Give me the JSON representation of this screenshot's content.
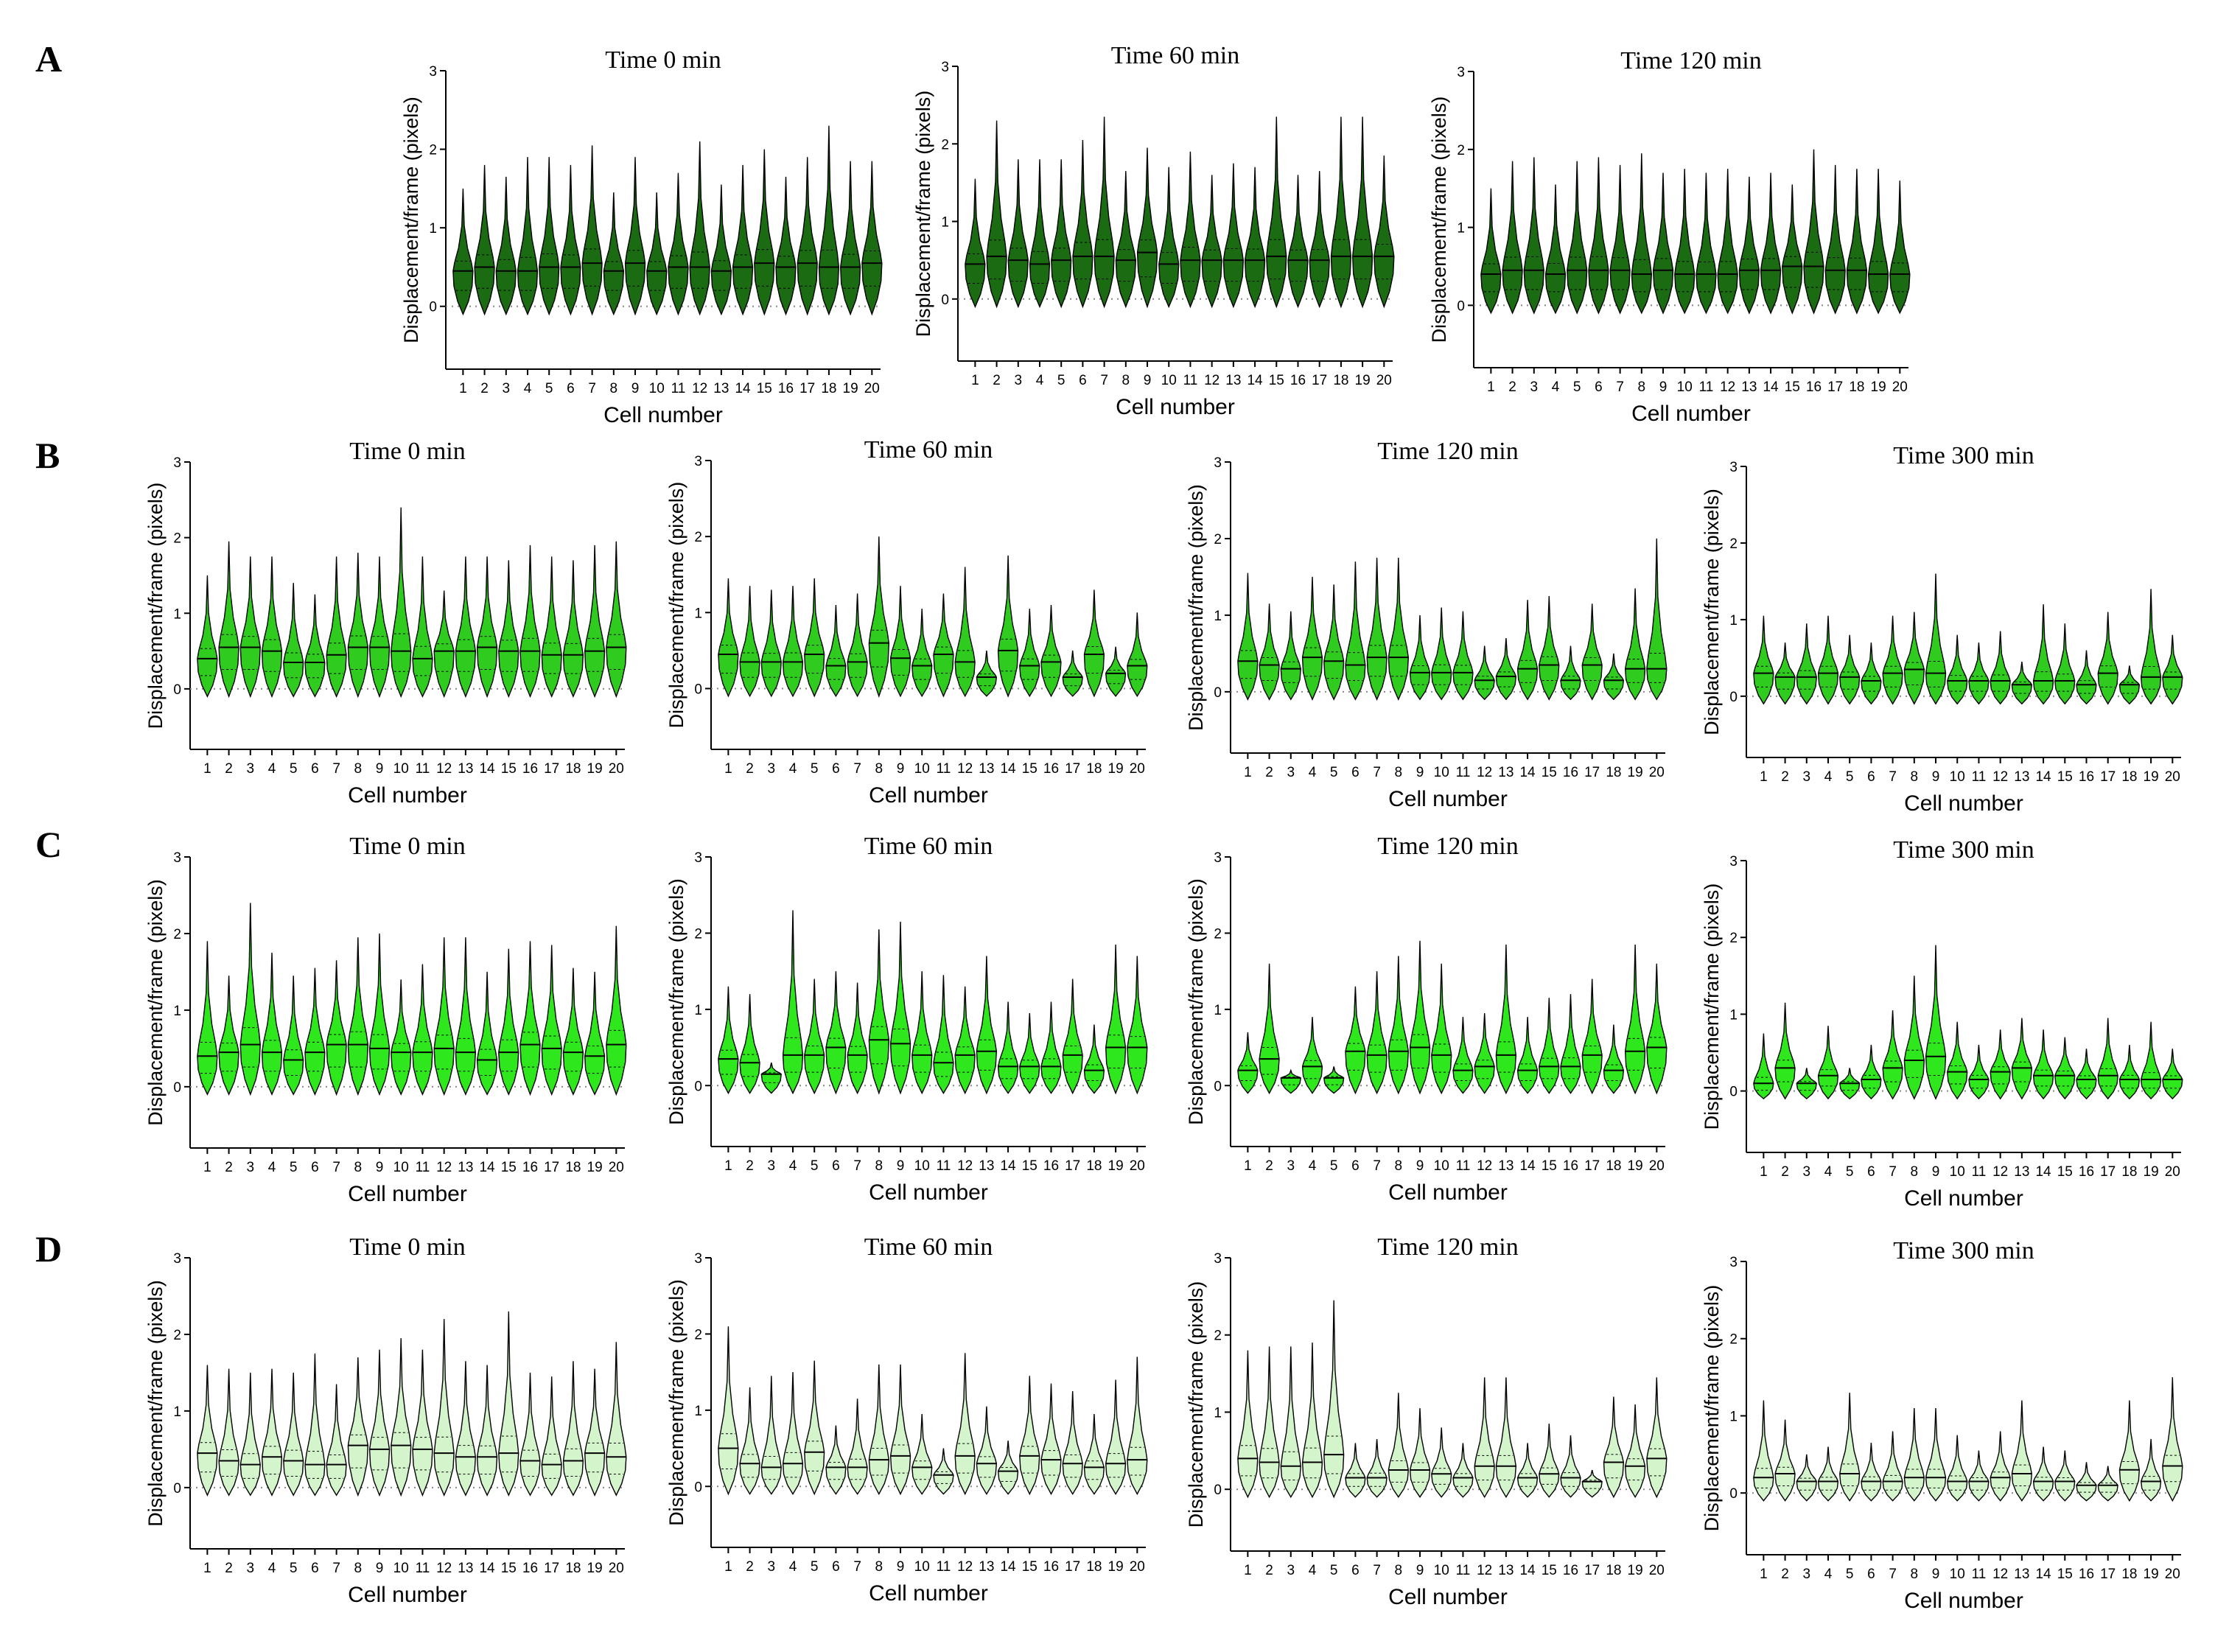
{
  "figure": {
    "panel_labels": [
      "A",
      "B",
      "C",
      "D"
    ],
    "colors": {
      "A": "#1a6b12",
      "B": "#2fcc1f",
      "C": "#2ee81d",
      "D": "#d4f5cc",
      "outline": "#000000",
      "zero_line": "#888888"
    }
  },
  "chart_data": [
    {
      "id": "A-0",
      "panel": "A",
      "type": "violin",
      "title": "Time 0 min",
      "xlabel": "Cell number",
      "ylabel": "Displacement/frame (pixels)",
      "ylim": [
        -0.8,
        3
      ],
      "yticks": [
        0,
        1,
        2,
        3
      ],
      "categories": [
        "1",
        "2",
        "3",
        "4",
        "5",
        "6",
        "7",
        "8",
        "9",
        "10",
        "11",
        "12",
        "13",
        "14",
        "15",
        "16",
        "17",
        "18",
        "19",
        "20"
      ],
      "medians": [
        0.45,
        0.5,
        0.45,
        0.45,
        0.5,
        0.5,
        0.55,
        0.45,
        0.55,
        0.45,
        0.5,
        0.5,
        0.45,
        0.5,
        0.55,
        0.5,
        0.55,
        0.5,
        0.5,
        0.55
      ],
      "maxima": [
        1.5,
        1.8,
        1.65,
        1.9,
        1.9,
        1.8,
        2.05,
        1.45,
        1.9,
        1.45,
        1.7,
        2.1,
        1.55,
        1.8,
        2.0,
        1.65,
        1.9,
        2.3,
        1.85,
        1.85
      ]
    },
    {
      "id": "A-60",
      "panel": "A",
      "type": "violin",
      "title": "Time 60 min",
      "xlabel": "Cell number",
      "ylabel": "Displacement/frame (pixels)",
      "ylim": [
        -0.8,
        3
      ],
      "yticks": [
        0,
        1,
        2,
        3
      ],
      "categories": [
        "1",
        "2",
        "3",
        "4",
        "5",
        "6",
        "7",
        "8",
        "9",
        "10",
        "11",
        "12",
        "13",
        "14",
        "15",
        "16",
        "17",
        "18",
        "19",
        "20"
      ],
      "medians": [
        0.45,
        0.55,
        0.5,
        0.45,
        0.5,
        0.55,
        0.55,
        0.5,
        0.6,
        0.45,
        0.5,
        0.5,
        0.5,
        0.5,
        0.55,
        0.5,
        0.5,
        0.55,
        0.55,
        0.55
      ],
      "maxima": [
        1.55,
        2.3,
        1.8,
        1.8,
        1.8,
        2.05,
        2.35,
        1.65,
        1.95,
        1.7,
        1.9,
        1.6,
        1.75,
        1.7,
        2.35,
        1.6,
        1.65,
        2.35,
        2.35,
        1.85
      ]
    },
    {
      "id": "A-120",
      "panel": "A",
      "type": "violin",
      "title": "Time 120 min",
      "xlabel": "Cell number",
      "ylabel": "Displacement/frame (pixels)",
      "ylim": [
        -0.8,
        3
      ],
      "yticks": [
        0,
        1,
        2,
        3
      ],
      "categories": [
        "1",
        "2",
        "3",
        "4",
        "5",
        "6",
        "7",
        "8",
        "9",
        "10",
        "11",
        "12",
        "13",
        "14",
        "15",
        "16",
        "17",
        "18",
        "19",
        "20"
      ],
      "medians": [
        0.4,
        0.45,
        0.45,
        0.4,
        0.45,
        0.45,
        0.45,
        0.4,
        0.45,
        0.4,
        0.4,
        0.4,
        0.45,
        0.45,
        0.5,
        0.5,
        0.45,
        0.45,
        0.4,
        0.4
      ],
      "maxima": [
        1.5,
        1.85,
        1.9,
        1.55,
        1.85,
        1.9,
        1.8,
        1.95,
        1.7,
        1.75,
        1.7,
        1.75,
        1.65,
        1.7,
        1.55,
        2.0,
        1.8,
        1.75,
        1.75,
        1.6
      ]
    },
    {
      "id": "B-0",
      "panel": "B",
      "type": "violin",
      "title": "Time 0 min",
      "xlabel": "Cell number",
      "ylabel": "Displacement/frame (pixels)",
      "ylim": [
        -0.8,
        3
      ],
      "yticks": [
        0,
        1,
        2,
        3
      ],
      "categories": [
        "1",
        "2",
        "3",
        "4",
        "5",
        "6",
        "7",
        "8",
        "9",
        "10",
        "11",
        "12",
        "13",
        "14",
        "15",
        "16",
        "17",
        "18",
        "19",
        "20"
      ],
      "medians": [
        0.4,
        0.55,
        0.55,
        0.5,
        0.35,
        0.35,
        0.45,
        0.55,
        0.55,
        0.5,
        0.4,
        0.5,
        0.5,
        0.55,
        0.5,
        0.5,
        0.45,
        0.45,
        0.5,
        0.55
      ],
      "maxima": [
        1.5,
        1.95,
        1.75,
        1.75,
        1.4,
        1.25,
        1.75,
        1.8,
        1.75,
        2.4,
        1.75,
        1.3,
        1.75,
        1.75,
        1.7,
        1.9,
        1.75,
        1.7,
        1.9,
        1.95
      ]
    },
    {
      "id": "B-60",
      "panel": "B",
      "type": "violin",
      "title": "Time 60 min",
      "xlabel": "Cell number",
      "ylabel": "Displacement/frame (pixels)",
      "ylim": [
        -0.8,
        3
      ],
      "yticks": [
        0,
        1,
        2,
        3
      ],
      "categories": [
        "1",
        "2",
        "3",
        "4",
        "5",
        "6",
        "7",
        "8",
        "9",
        "10",
        "11",
        "12",
        "13",
        "14",
        "15",
        "16",
        "17",
        "18",
        "19",
        "20"
      ],
      "medians": [
        0.45,
        0.35,
        0.35,
        0.35,
        0.45,
        0.3,
        0.35,
        0.6,
        0.4,
        0.3,
        0.45,
        0.35,
        0.15,
        0.5,
        0.3,
        0.35,
        0.15,
        0.45,
        0.2,
        0.3
      ],
      "maxima": [
        1.45,
        1.35,
        1.3,
        1.35,
        1.45,
        1.1,
        1.25,
        2.0,
        1.35,
        1.05,
        1.25,
        1.6,
        0.5,
        1.75,
        1.05,
        1.1,
        0.5,
        1.3,
        0.55,
        1.0
      ]
    },
    {
      "id": "B-120",
      "panel": "B",
      "type": "violin",
      "title": "Time 120 min",
      "xlabel": "Cell number",
      "ylabel": "Displacement/frame (pixels)",
      "ylim": [
        -0.8,
        3
      ],
      "yticks": [
        0,
        1,
        2,
        3
      ],
      "categories": [
        "1",
        "2",
        "3",
        "4",
        "5",
        "6",
        "7",
        "8",
        "9",
        "10",
        "11",
        "12",
        "13",
        "14",
        "15",
        "16",
        "17",
        "18",
        "19",
        "20"
      ],
      "medians": [
        0.4,
        0.35,
        0.3,
        0.45,
        0.4,
        0.35,
        0.45,
        0.45,
        0.25,
        0.25,
        0.25,
        0.15,
        0.2,
        0.3,
        0.35,
        0.15,
        0.35,
        0.15,
        0.3,
        0.3
      ],
      "maxima": [
        1.55,
        1.15,
        1.05,
        1.5,
        1.4,
        1.7,
        1.75,
        1.75,
        1.0,
        1.1,
        1.05,
        0.6,
        0.7,
        1.2,
        1.25,
        0.6,
        1.15,
        0.5,
        1.35,
        2.0
      ]
    },
    {
      "id": "B-300",
      "panel": "B",
      "type": "violin",
      "title": "Time 300 min",
      "xlabel": "Cell number",
      "ylabel": "Displacement/frame (pixels)",
      "ylim": [
        -0.8,
        3
      ],
      "yticks": [
        0,
        1,
        2,
        3
      ],
      "categories": [
        "1",
        "2",
        "3",
        "4",
        "5",
        "6",
        "7",
        "8",
        "9",
        "10",
        "11",
        "12",
        "13",
        "14",
        "15",
        "16",
        "17",
        "18",
        "19",
        "20"
      ],
      "medians": [
        0.3,
        0.25,
        0.25,
        0.3,
        0.25,
        0.2,
        0.3,
        0.35,
        0.3,
        0.2,
        0.2,
        0.2,
        0.15,
        0.2,
        0.2,
        0.15,
        0.3,
        0.15,
        0.25,
        0.25
      ],
      "maxima": [
        1.05,
        0.7,
        0.95,
        1.05,
        0.8,
        0.7,
        1.05,
        1.1,
        1.6,
        0.8,
        0.7,
        0.85,
        0.45,
        1.2,
        0.95,
        0.6,
        1.1,
        0.4,
        1.4,
        0.8
      ]
    },
    {
      "id": "C-0",
      "panel": "C",
      "type": "violin",
      "title": "Time 0 min",
      "xlabel": "Cell number",
      "ylabel": "Displacement/frame (pixels)",
      "ylim": [
        -0.8,
        3
      ],
      "yticks": [
        0,
        1,
        2,
        3
      ],
      "categories": [
        "1",
        "2",
        "3",
        "4",
        "5",
        "6",
        "7",
        "8",
        "9",
        "10",
        "11",
        "12",
        "13",
        "14",
        "15",
        "16",
        "17",
        "18",
        "19",
        "20"
      ],
      "medians": [
        0.4,
        0.45,
        0.55,
        0.45,
        0.35,
        0.45,
        0.55,
        0.55,
        0.5,
        0.45,
        0.45,
        0.5,
        0.45,
        0.35,
        0.45,
        0.55,
        0.5,
        0.45,
        0.4,
        0.55
      ],
      "maxima": [
        1.9,
        1.45,
        2.4,
        1.75,
        1.45,
        1.55,
        1.65,
        1.95,
        2.0,
        1.4,
        1.6,
        1.95,
        1.95,
        1.5,
        1.8,
        1.9,
        1.85,
        1.55,
        1.5,
        2.1
      ]
    },
    {
      "id": "C-60",
      "panel": "C",
      "type": "violin",
      "title": "Time 60 min",
      "xlabel": "Cell number",
      "ylabel": "Displacement/frame (pixels)",
      "ylim": [
        -0.8,
        3
      ],
      "yticks": [
        0,
        1,
        2,
        3
      ],
      "categories": [
        "1",
        "2",
        "3",
        "4",
        "5",
        "6",
        "7",
        "8",
        "9",
        "10",
        "11",
        "12",
        "13",
        "14",
        "15",
        "16",
        "17",
        "18",
        "19",
        "20"
      ],
      "medians": [
        0.35,
        0.3,
        0.15,
        0.4,
        0.4,
        0.5,
        0.4,
        0.6,
        0.55,
        0.4,
        0.3,
        0.4,
        0.45,
        0.25,
        0.25,
        0.25,
        0.4,
        0.2,
        0.5,
        0.5
      ],
      "maxima": [
        1.3,
        1.2,
        0.3,
        2.3,
        1.4,
        1.5,
        1.35,
        2.05,
        2.15,
        1.5,
        1.45,
        1.3,
        1.7,
        1.1,
        0.95,
        1.1,
        1.4,
        0.8,
        1.85,
        1.7
      ]
    },
    {
      "id": "C-120",
      "panel": "C",
      "type": "violin",
      "title": "Time 120 min",
      "xlabel": "Cell number",
      "ylabel": "Displacement/frame (pixels)",
      "ylim": [
        -0.8,
        3
      ],
      "yticks": [
        0,
        1,
        2,
        3
      ],
      "categories": [
        "1",
        "2",
        "3",
        "4",
        "5",
        "6",
        "7",
        "8",
        "9",
        "10",
        "11",
        "12",
        "13",
        "14",
        "15",
        "16",
        "17",
        "18",
        "19",
        "20"
      ],
      "medians": [
        0.2,
        0.35,
        0.1,
        0.25,
        0.1,
        0.45,
        0.4,
        0.45,
        0.5,
        0.4,
        0.2,
        0.25,
        0.4,
        0.2,
        0.25,
        0.25,
        0.4,
        0.2,
        0.45,
        0.5
      ],
      "maxima": [
        0.7,
        1.6,
        0.2,
        0.9,
        0.25,
        1.3,
        1.5,
        1.7,
        1.9,
        1.6,
        0.9,
        0.95,
        1.85,
        0.9,
        1.15,
        1.2,
        1.4,
        0.8,
        1.85,
        1.6
      ]
    },
    {
      "id": "C-300",
      "panel": "C",
      "type": "violin",
      "title": "Time 300 min",
      "xlabel": "Cell number",
      "ylabel": "Displacement/frame (pixels)",
      "ylim": [
        -0.8,
        3
      ],
      "yticks": [
        0,
        1,
        2,
        3
      ],
      "categories": [
        "1",
        "2",
        "3",
        "4",
        "5",
        "6",
        "7",
        "8",
        "9",
        "10",
        "11",
        "12",
        "13",
        "14",
        "15",
        "16",
        "17",
        "18",
        "19",
        "20"
      ],
      "medians": [
        0.1,
        0.3,
        0.1,
        0.2,
        0.1,
        0.15,
        0.3,
        0.4,
        0.45,
        0.25,
        0.15,
        0.25,
        0.3,
        0.2,
        0.2,
        0.15,
        0.2,
        0.15,
        0.15,
        0.15
      ],
      "maxima": [
        0.75,
        1.15,
        0.3,
        0.85,
        0.3,
        0.6,
        1.05,
        1.5,
        1.9,
        0.9,
        0.6,
        0.8,
        0.95,
        0.8,
        0.7,
        0.55,
        0.95,
        0.6,
        0.9,
        0.55
      ]
    },
    {
      "id": "D-0",
      "panel": "D",
      "type": "violin",
      "title": "Time 0 min",
      "xlabel": "Cell number",
      "ylabel": "Displacement/frame (pixels)",
      "ylim": [
        -0.8,
        3
      ],
      "yticks": [
        0,
        1,
        2,
        3
      ],
      "categories": [
        "1",
        "2",
        "3",
        "4",
        "5",
        "6",
        "7",
        "8",
        "9",
        "10",
        "11",
        "12",
        "13",
        "14",
        "15",
        "16",
        "17",
        "18",
        "19",
        "20"
      ],
      "medians": [
        0.45,
        0.35,
        0.3,
        0.4,
        0.35,
        0.3,
        0.3,
        0.55,
        0.5,
        0.55,
        0.5,
        0.45,
        0.4,
        0.4,
        0.45,
        0.35,
        0.3,
        0.35,
        0.45,
        0.4
      ],
      "maxima": [
        1.6,
        1.55,
        1.5,
        1.55,
        1.5,
        1.75,
        1.35,
        1.7,
        1.8,
        1.95,
        1.8,
        2.2,
        1.65,
        1.6,
        2.3,
        1.5,
        1.45,
        1.65,
        1.55,
        1.9
      ]
    },
    {
      "id": "D-60",
      "panel": "D",
      "type": "violin",
      "title": "Time 60 min",
      "xlabel": "Cell number",
      "ylabel": "Displacement/frame (pixels)",
      "ylim": [
        -0.8,
        3
      ],
      "yticks": [
        0,
        1,
        2,
        3
      ],
      "categories": [
        "1",
        "2",
        "3",
        "4",
        "5",
        "6",
        "7",
        "8",
        "9",
        "10",
        "11",
        "12",
        "13",
        "14",
        "15",
        "16",
        "17",
        "18",
        "19",
        "20"
      ],
      "medians": [
        0.5,
        0.3,
        0.25,
        0.3,
        0.45,
        0.25,
        0.25,
        0.35,
        0.4,
        0.25,
        0.15,
        0.4,
        0.3,
        0.2,
        0.4,
        0.35,
        0.3,
        0.25,
        0.3,
        0.35
      ],
      "maxima": [
        2.1,
        1.3,
        1.45,
        1.5,
        1.65,
        0.8,
        1.15,
        1.6,
        1.6,
        0.95,
        0.5,
        1.75,
        1.05,
        0.6,
        1.45,
        1.35,
        1.25,
        0.95,
        1.4,
        1.7
      ]
    },
    {
      "id": "D-120",
      "panel": "D",
      "type": "violin",
      "title": "Time 120 min",
      "xlabel": "Cell number",
      "ylabel": "Displacement/frame (pixels)",
      "ylim": [
        -0.8,
        3
      ],
      "yticks": [
        0,
        1,
        2,
        3
      ],
      "categories": [
        "1",
        "2",
        "3",
        "4",
        "5",
        "6",
        "7",
        "8",
        "9",
        "10",
        "11",
        "12",
        "13",
        "14",
        "15",
        "16",
        "17",
        "18",
        "19",
        "20"
      ],
      "medians": [
        0.4,
        0.35,
        0.3,
        0.35,
        0.45,
        0.15,
        0.15,
        0.25,
        0.25,
        0.2,
        0.15,
        0.3,
        0.3,
        0.15,
        0.2,
        0.15,
        0.1,
        0.35,
        0.3,
        0.4
      ],
      "maxima": [
        1.8,
        1.85,
        1.85,
        1.9,
        2.45,
        0.6,
        0.65,
        1.25,
        1.05,
        0.8,
        0.6,
        1.45,
        1.45,
        0.6,
        0.85,
        0.7,
        0.25,
        1.2,
        1.1,
        1.45
      ]
    },
    {
      "id": "D-300",
      "panel": "D",
      "type": "violin",
      "title": "Time 300 min",
      "xlabel": "Cell number",
      "ylabel": "Displacement/frame (pixels)",
      "ylim": [
        -0.8,
        3
      ],
      "yticks": [
        0,
        1,
        2,
        3
      ],
      "categories": [
        "1",
        "2",
        "3",
        "4",
        "5",
        "6",
        "7",
        "8",
        "9",
        "10",
        "11",
        "12",
        "13",
        "14",
        "15",
        "16",
        "17",
        "18",
        "19",
        "20"
      ],
      "medians": [
        0.2,
        0.25,
        0.15,
        0.15,
        0.25,
        0.15,
        0.15,
        0.2,
        0.2,
        0.15,
        0.15,
        0.2,
        0.25,
        0.15,
        0.15,
        0.1,
        0.1,
        0.3,
        0.15,
        0.35
      ],
      "maxima": [
        1.2,
        0.95,
        0.5,
        0.6,
        1.3,
        0.65,
        0.8,
        1.1,
        1.1,
        0.75,
        0.55,
        0.8,
        1.2,
        0.6,
        0.55,
        0.4,
        0.35,
        1.2,
        0.7,
        1.5
      ]
    }
  ]
}
